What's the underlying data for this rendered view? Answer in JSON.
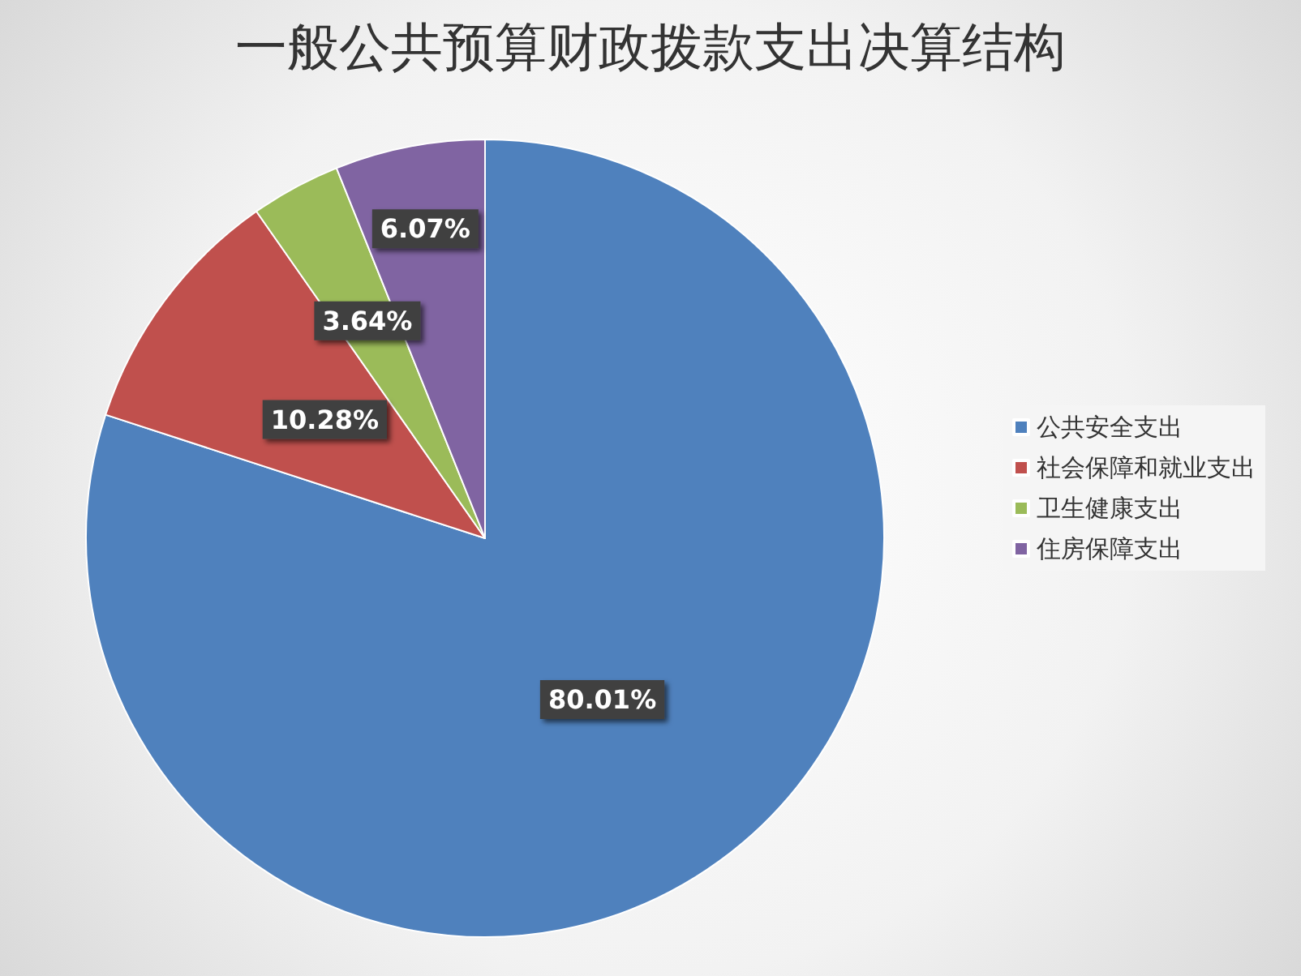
{
  "chart_data": {
    "type": "pie",
    "title": "一般公共预算财政拨款支出决算结构",
    "categories": [
      "公共安全支出",
      "社会保障和就业支出",
      "卫生健康支出",
      "住房保障支出"
    ],
    "values": [
      80.01,
      10.28,
      3.64,
      6.07
    ],
    "colors": [
      "#4f81bd",
      "#c0504d",
      "#9bbb59",
      "#8064a2"
    ],
    "value_labels": [
      "80.01%",
      "10.28%",
      "3.64%",
      "6.07%"
    ],
    "legend": "right"
  }
}
